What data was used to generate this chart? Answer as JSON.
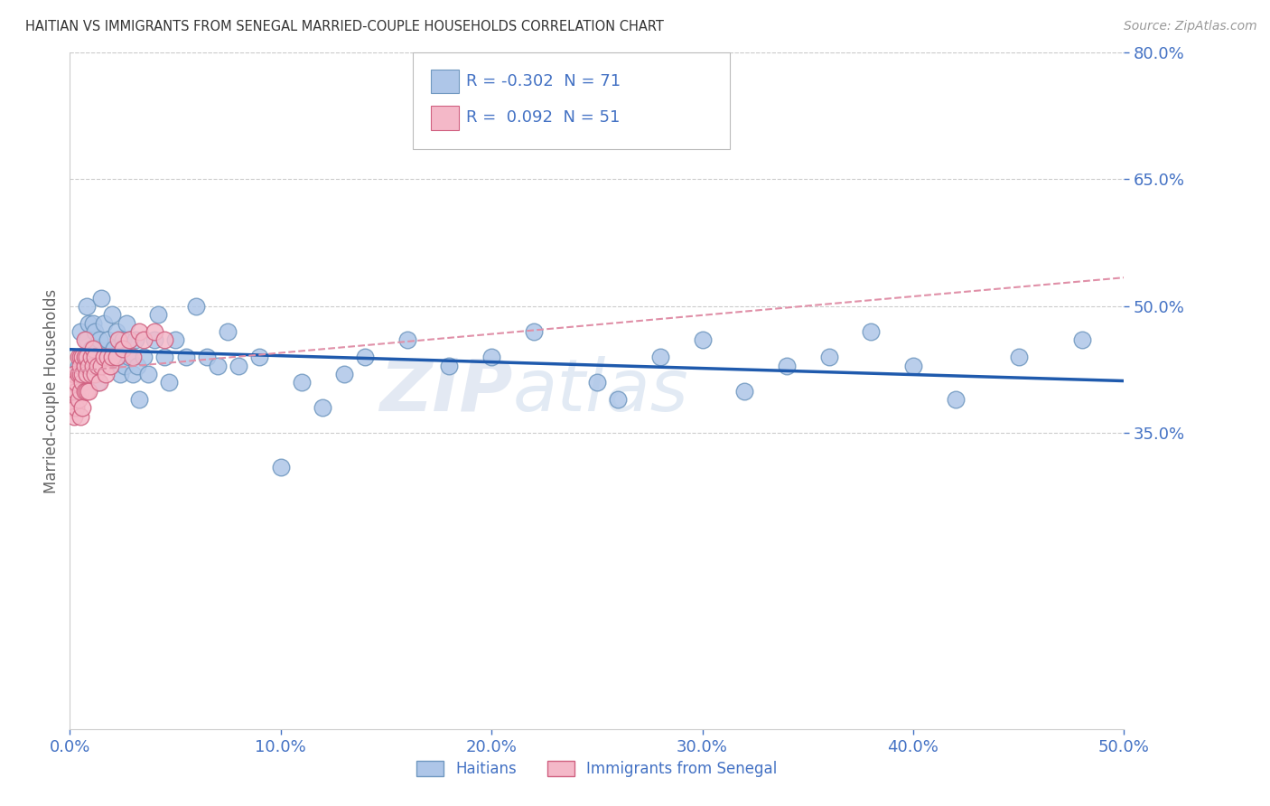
{
  "title": "HAITIAN VS IMMIGRANTS FROM SENEGAL MARRIED-COUPLE HOUSEHOLDS CORRELATION CHART",
  "source": "Source: ZipAtlas.com",
  "ylabel": "Married-couple Households",
  "xlim": [
    0.0,
    0.5
  ],
  "ylim": [
    0.0,
    0.8
  ],
  "ytick_vals": [
    0.35,
    0.5,
    0.65,
    0.8
  ],
  "ytick_labels": [
    "35.0%",
    "50.0%",
    "65.0%",
    "80.0%"
  ],
  "xtick_vals": [
    0.0,
    0.1,
    0.2,
    0.3,
    0.4,
    0.5
  ],
  "xtick_labels": [
    "0.0%",
    "10.0%",
    "20.0%",
    "30.0%",
    "40.0%",
    "50.0%"
  ],
  "grid_color": "#cccccc",
  "axis_color": "#4472c4",
  "haitian_color": "#aec6e8",
  "haitian_edge_color": "#7098c0",
  "senegal_color": "#f4b8c8",
  "senegal_edge_color": "#d06080",
  "haitian_R": -0.302,
  "haitian_N": 71,
  "senegal_R": 0.092,
  "senegal_N": 51,
  "haitian_line_color": "#1f5aad",
  "senegal_line_color": "#d04060",
  "senegal_dashed_color": "#e090a8",
  "watermark_zip": "ZIP",
  "watermark_atlas": "atlas",
  "legend_label_haitian": "Haitians",
  "legend_label_senegal": "Immigrants from Senegal",
  "haitian_x": [
    0.004,
    0.005,
    0.006,
    0.007,
    0.008,
    0.008,
    0.009,
    0.009,
    0.01,
    0.01,
    0.011,
    0.011,
    0.012,
    0.012,
    0.013,
    0.013,
    0.014,
    0.015,
    0.015,
    0.016,
    0.017,
    0.018,
    0.019,
    0.02,
    0.021,
    0.022,
    0.023,
    0.024,
    0.025,
    0.026,
    0.027,
    0.028,
    0.03,
    0.031,
    0.032,
    0.033,
    0.035,
    0.037,
    0.04,
    0.042,
    0.045,
    0.047,
    0.05,
    0.055,
    0.06,
    0.065,
    0.07,
    0.075,
    0.08,
    0.09,
    0.1,
    0.11,
    0.12,
    0.13,
    0.14,
    0.16,
    0.18,
    0.2,
    0.22,
    0.25,
    0.26,
    0.28,
    0.3,
    0.32,
    0.34,
    0.36,
    0.38,
    0.4,
    0.42,
    0.45,
    0.48
  ],
  "haitian_y": [
    0.43,
    0.47,
    0.44,
    0.42,
    0.46,
    0.5,
    0.48,
    0.43,
    0.42,
    0.45,
    0.44,
    0.48,
    0.43,
    0.47,
    0.45,
    0.41,
    0.46,
    0.43,
    0.51,
    0.48,
    0.44,
    0.46,
    0.43,
    0.49,
    0.45,
    0.47,
    0.44,
    0.42,
    0.46,
    0.43,
    0.48,
    0.44,
    0.42,
    0.46,
    0.43,
    0.39,
    0.44,
    0.42,
    0.46,
    0.49,
    0.44,
    0.41,
    0.46,
    0.44,
    0.5,
    0.44,
    0.43,
    0.47,
    0.43,
    0.44,
    0.31,
    0.41,
    0.38,
    0.42,
    0.44,
    0.46,
    0.43,
    0.44,
    0.47,
    0.41,
    0.39,
    0.44,
    0.46,
    0.4,
    0.43,
    0.44,
    0.47,
    0.43,
    0.39,
    0.44,
    0.46
  ],
  "senegal_x": [
    0.001,
    0.001,
    0.002,
    0.002,
    0.003,
    0.003,
    0.003,
    0.004,
    0.004,
    0.004,
    0.005,
    0.005,
    0.005,
    0.005,
    0.005,
    0.006,
    0.006,
    0.006,
    0.006,
    0.007,
    0.007,
    0.007,
    0.007,
    0.008,
    0.008,
    0.008,
    0.009,
    0.009,
    0.01,
    0.01,
    0.011,
    0.011,
    0.012,
    0.012,
    0.013,
    0.014,
    0.015,
    0.016,
    0.017,
    0.018,
    0.019,
    0.02,
    0.022,
    0.023,
    0.025,
    0.028,
    0.03,
    0.033,
    0.035,
    0.04,
    0.045
  ],
  "senegal_y": [
    0.38,
    0.41,
    0.37,
    0.42,
    0.4,
    0.38,
    0.41,
    0.39,
    0.42,
    0.44,
    0.37,
    0.4,
    0.42,
    0.44,
    0.43,
    0.38,
    0.41,
    0.42,
    0.44,
    0.4,
    0.43,
    0.44,
    0.46,
    0.4,
    0.42,
    0.44,
    0.4,
    0.43,
    0.42,
    0.44,
    0.43,
    0.45,
    0.42,
    0.44,
    0.43,
    0.41,
    0.43,
    0.44,
    0.42,
    0.44,
    0.43,
    0.44,
    0.44,
    0.46,
    0.45,
    0.46,
    0.44,
    0.47,
    0.46,
    0.47,
    0.46
  ]
}
